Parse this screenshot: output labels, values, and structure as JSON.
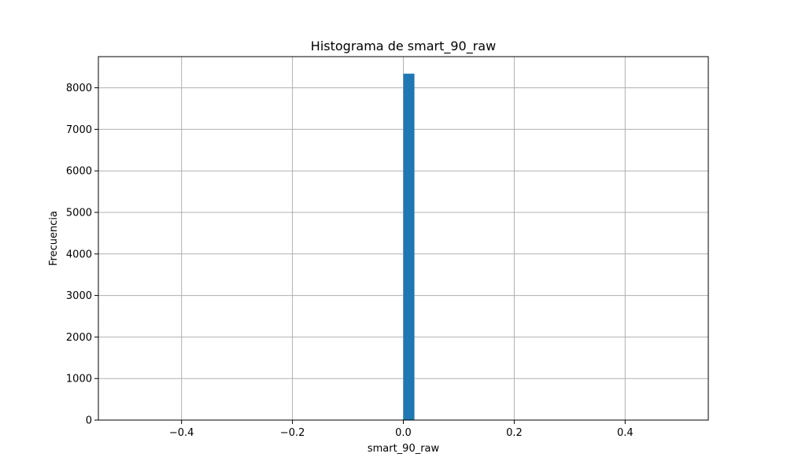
{
  "chart_data": {
    "type": "bar",
    "title": "Histograma de smart_90_raw",
    "xlabel": "smart_90_raw",
    "ylabel": "Frecuencia",
    "xlim": [
      -0.55,
      0.55
    ],
    "ylim": [
      0,
      8750
    ],
    "grid": true,
    "bar_color": "#1f77b4",
    "bins": [
      {
        "x0": 0.0,
        "x1": 0.02,
        "count": 8340
      }
    ],
    "x_ticks": [
      {
        "value": -0.4,
        "label": "−0.4"
      },
      {
        "value": -0.2,
        "label": "−0.2"
      },
      {
        "value": 0.0,
        "label": "0.0"
      },
      {
        "value": 0.2,
        "label": "0.2"
      },
      {
        "value": 0.4,
        "label": "0.4"
      }
    ],
    "y_ticks": [
      {
        "value": 0,
        "label": "0"
      },
      {
        "value": 1000,
        "label": "1000"
      },
      {
        "value": 2000,
        "label": "2000"
      },
      {
        "value": 3000,
        "label": "3000"
      },
      {
        "value": 4000,
        "label": "4000"
      },
      {
        "value": 5000,
        "label": "5000"
      },
      {
        "value": 6000,
        "label": "6000"
      },
      {
        "value": 7000,
        "label": "7000"
      },
      {
        "value": 8000,
        "label": "8000"
      }
    ]
  }
}
